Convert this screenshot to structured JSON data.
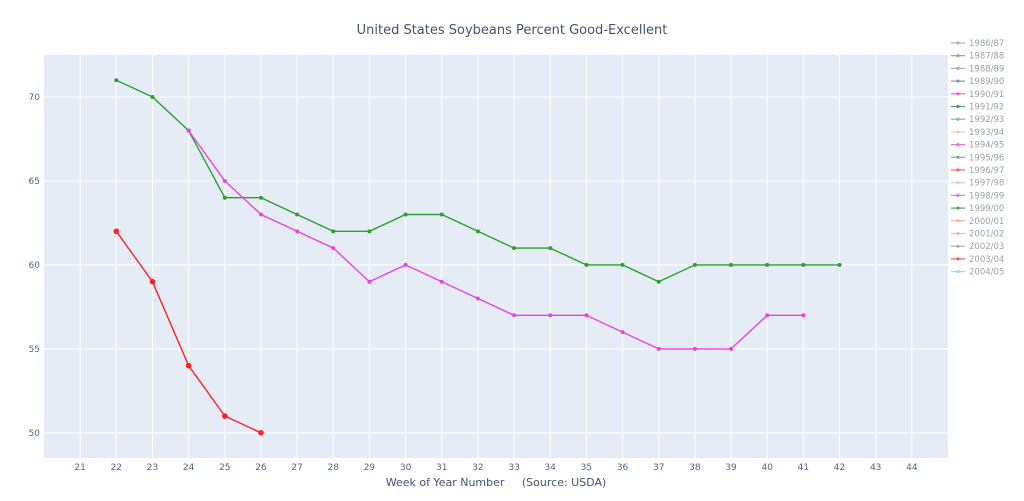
{
  "chart_data": {
    "type": "line",
    "title": "United States Soybeans Percent Good-Excellent",
    "xlabel": "Week of Year Number     (Source: USDA)",
    "ylabel": "",
    "xlim": [
      20,
      45
    ],
    "ylim": [
      48.5,
      72.5
    ],
    "x_ticks": [
      21,
      22,
      23,
      24,
      25,
      26,
      27,
      28,
      29,
      30,
      31,
      32,
      33,
      34,
      35,
      36,
      37,
      38,
      39,
      40,
      41,
      42,
      43,
      44
    ],
    "y_ticks": [
      50,
      55,
      60,
      65,
      70
    ],
    "grid": true,
    "legend_position": "right",
    "legend": [
      {
        "name": "1986/87",
        "color": "#b5b5b5"
      },
      {
        "name": "1987/88",
        "color": "#9aa57a"
      },
      {
        "name": "1988/89",
        "color": "#c79ad6"
      },
      {
        "name": "1989/90",
        "color": "#8f8fb5"
      },
      {
        "name": "1990/91",
        "color": "#e75ce0"
      },
      {
        "name": "1991/92",
        "color": "#4fa05a"
      },
      {
        "name": "1992/93",
        "color": "#7dc08a"
      },
      {
        "name": "1993/94",
        "color": "#f5c9a8"
      },
      {
        "name": "1994/95",
        "color": "#ec6fe6"
      },
      {
        "name": "1995/96",
        "color": "#7db08a"
      },
      {
        "name": "1996/97",
        "color": "#e56b6b"
      },
      {
        "name": "1997/98",
        "color": "#cfcfe6"
      },
      {
        "name": "1998/99",
        "color": "#d27bd8"
      },
      {
        "name": "1999/00",
        "color": "#5aa064"
      },
      {
        "name": "2000/01",
        "color": "#f0b890"
      },
      {
        "name": "2001/02",
        "color": "#f2b9b9"
      },
      {
        "name": "2002/03",
        "color": "#a8b8a8"
      },
      {
        "name": "2003/04",
        "color": "#e56060"
      },
      {
        "name": "2004/05",
        "color": "#9fd6e0"
      }
    ],
    "series": [
      {
        "color": "#2ca02c",
        "x": [
          22,
          23,
          24,
          25,
          26,
          27,
          28,
          29,
          30,
          31,
          32,
          33,
          34,
          35,
          36,
          37,
          38,
          39,
          40,
          41,
          42
        ],
        "y": [
          71,
          70,
          68,
          64,
          64,
          63,
          62,
          62,
          63,
          63,
          62,
          61,
          61,
          60,
          60,
          59,
          60,
          60,
          60,
          60,
          60
        ]
      },
      {
        "color": "#e844e0",
        "x": [
          24,
          25,
          26,
          27,
          28,
          29,
          30,
          31,
          32,
          33,
          34,
          35,
          36,
          37,
          38,
          39,
          40,
          41
        ],
        "y": [
          68,
          65,
          63,
          62,
          61,
          59,
          60,
          59,
          58,
          57,
          57,
          57,
          56,
          55,
          55,
          55,
          57,
          57
        ]
      },
      {
        "color": "#ff2020",
        "x": [
          22,
          23,
          24,
          25,
          26
        ],
        "y": [
          62,
          59,
          54,
          51,
          50
        ]
      }
    ]
  }
}
